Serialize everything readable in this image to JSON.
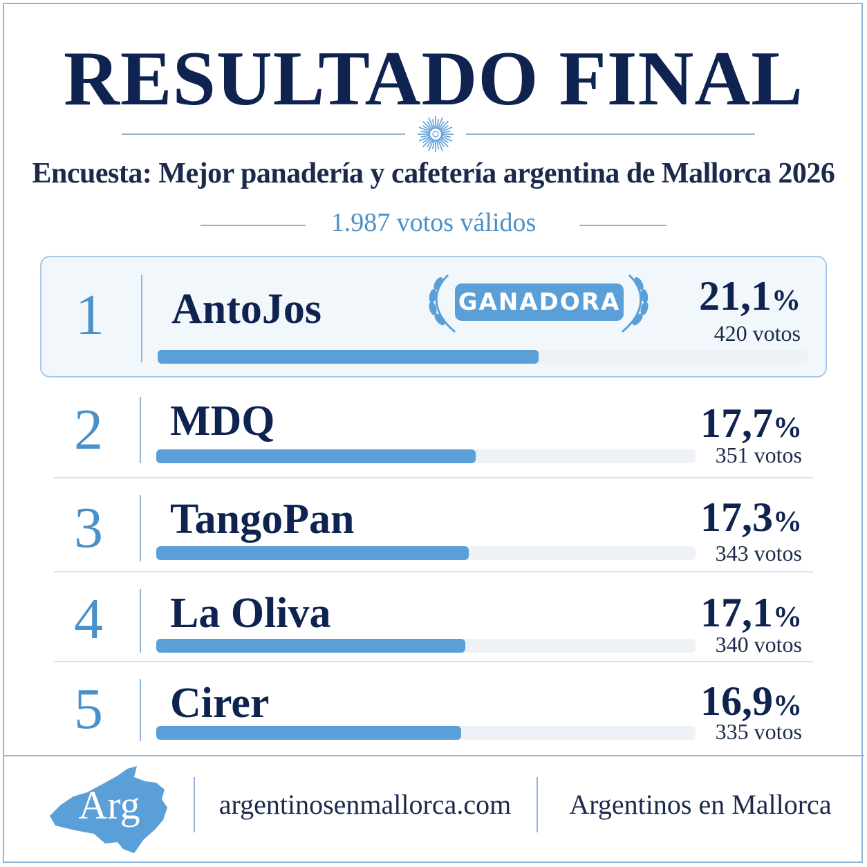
{
  "header": {
    "title": "RESULTADO FINAL",
    "subtitle": "Encuesta: Mejor panadería y cafetería argentina de Mallorca 2026",
    "total_votes": "1.987 votos válidos"
  },
  "winner_badge": "GANADORA",
  "chart_data": {
    "type": "bar",
    "orientation": "horizontal",
    "title": "RESULTADO FINAL",
    "categories": [
      "AntoJos",
      "MDQ",
      "TangoPan",
      "La Oliva",
      "Cirer"
    ],
    "ranks": [
      1,
      2,
      3,
      4,
      5
    ],
    "values": [
      21.1,
      17.7,
      17.3,
      17.1,
      16.9
    ],
    "votes": [
      420,
      351,
      343,
      340,
      335
    ],
    "xlim": [
      0,
      36
    ],
    "labels": {
      "rank": [
        "1",
        "2",
        "3",
        "4",
        "5"
      ],
      "pct": [
        "21,1",
        "17,7",
        "17,3",
        "17,1",
        "16,9"
      ],
      "pct_symbol": "%",
      "votes": [
        "420 votos",
        "351 votos",
        "343 votos",
        "340 votos",
        "335 votos"
      ]
    },
    "colors": {
      "bar": "#5b9fd8",
      "track": "#eef1f5",
      "rank": "#4a90c9",
      "text": "#0f2350"
    }
  },
  "footer": {
    "logo_text": "Arg",
    "website": "argentinosenmallorca.com",
    "brand": "Argentinos en Mallorca"
  }
}
